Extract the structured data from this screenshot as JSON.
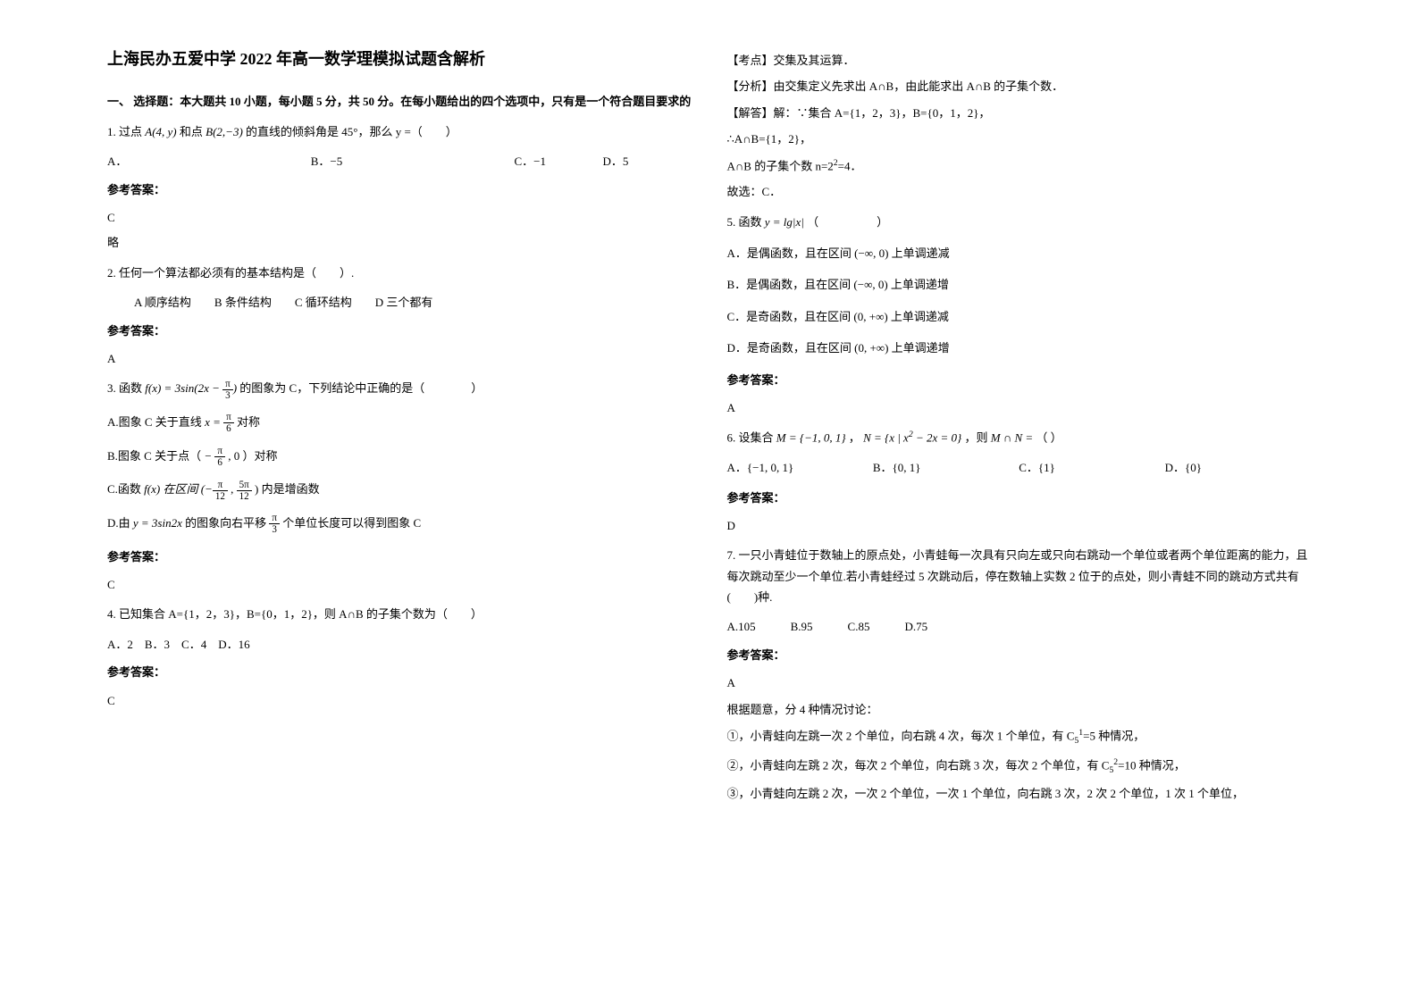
{
  "title": "上海民办五爱中学 2022 年高一数学理模拟试题含解析",
  "section1_header": "一、 选择题：本大题共 10 小题，每小题 5 分，共 50 分。在每小题给出的四个选项中，只有是一个符合题目要求的",
  "q1": {
    "stem_prefix": "1. 过点",
    "point_a": "A(4, y)",
    "stem_mid": " 和点 ",
    "point_b": "B(2,−3)",
    "stem_suffix": " 的直线的倾斜角是 45°，那么 y =（　　）",
    "opt_a": "A．",
    "opt_b": "B．−5",
    "opt_c": "C．−1",
    "opt_d": "D．5",
    "answer_label": "参考答案：",
    "answer": "C",
    "note": "略"
  },
  "q2": {
    "stem": "2. 任何一个算法都必须有的基本结构是（　　）.",
    "opts": "A 顺序结构　　B 条件结构　　C 循环结构　　D 三个都有",
    "answer_label": "参考答案：",
    "answer": "A"
  },
  "q3": {
    "stem_prefix": "3. 函数 ",
    "func": "f(x) = 3sin(2x − ",
    "frac_num": "π",
    "frac_den": "3",
    "stem_suffix": " 的图象为 C，下列结论中正确的是（　　　　）",
    "opt_a_prefix": "A.图象 C 关于直线 ",
    "opt_a_eq": "x = ",
    "opt_a_num": "π",
    "opt_a_den": "6",
    "opt_a_suffix": " 对称",
    "opt_b_prefix": "B.图象 C 关于点（",
    "opt_b_num": "π",
    "opt_b_den": "6",
    "opt_b_mid": "− ",
    "opt_b_suffix": " , 0 ）对称",
    "opt_c_prefix": "C.函数 ",
    "opt_c_func": "f(x) 在区间 (−",
    "opt_c_n1": "π",
    "opt_c_d1": "12",
    "opt_c_mid": " , ",
    "opt_c_n2": "5π",
    "opt_c_d2": "12",
    "opt_c_suffix": ") 内是增函数",
    "opt_d_prefix": "D.由 ",
    "opt_d_func": "y = 3sin2x",
    "opt_d_mid": " 的图象向右平移 ",
    "opt_d_num": "π",
    "opt_d_den": "3",
    "opt_d_suffix": " 个单位长度可以得到图象 C",
    "answer_label": "参考答案：",
    "answer": "C"
  },
  "q4": {
    "stem": "4. 已知集合 A={1，2，3}，B={0，1，2}，则 A∩B 的子集个数为（　　）",
    "opts": "A．2　B．3　C．4　D．16",
    "answer_label": "参考答案：",
    "answer": "C"
  },
  "q4_analysis": {
    "kaodian": "【考点】交集及其运算．",
    "fenxi": "【分析】由交集定义先求出 A∩B，由此能求出 A∩B 的子集个数．",
    "jieda_label": "【解答】解：∵集合 A={1，2，3}，B={0，1，2}，",
    "line1": "∴A∩B={1，2}，",
    "line2_prefix": "A∩B 的子集个数 n=2",
    "line2_exp": "2",
    "line2_suffix": "=4．",
    "line3": "故选：C．"
  },
  "q5": {
    "stem_prefix": "5. 函数 ",
    "func": "y = lg|x|",
    "stem_suffix": "（　　　　　）",
    "opt_a": "A．是偶函数，且在区间 (−∞, 0) 上单调递减",
    "opt_b": "B．是偶函数，且在区间 (−∞, 0) 上单调递增",
    "opt_c": "C．是奇函数，且在区间 (0, +∞) 上单调递减",
    "opt_d": "D．是奇函数，且在区间 (0, +∞) 上单调递增",
    "answer_label": "参考答案：",
    "answer": "A"
  },
  "q6": {
    "stem_prefix": "6. 设集合 ",
    "set_m": "M = {−1, 0, 1}",
    "mid1": "，",
    "set_n_prefix": "N = {x | x",
    "set_n_exp": "2",
    "set_n_suffix": " − 2x = 0}",
    "mid2": "，则 ",
    "expr": "M ∩ N = ",
    "stem_suffix": "（ ）",
    "opt_a": "A．{−1, 0, 1}",
    "opt_b": "B．{0, 1}",
    "opt_c": "C．{1}",
    "opt_d": "D．{0}",
    "answer_label": "参考答案：",
    "answer": "D"
  },
  "q7": {
    "stem": "7. 一只小青蛙位于数轴上的原点处，小青蛙每一次具有只向左或只向右跳动一个单位或者两个单位距离的能力，且每次跳动至少一个单位.若小青蛙经过 5 次跳动后，停在数轴上实数 2 位于的点处，则小青蛙不同的跳动方式共有(　　)种.",
    "opts": "A.105　　　B.95　　　C.85　　　D.75",
    "answer_label": "参考答案：",
    "answer": "A",
    "explain0": "根据题意，分 4 种情况讨论：",
    "explain1_prefix": "①，小青蛙向左跳一次 2 个单位，向右跳 4 次，每次 1 个单位，有 C",
    "explain1_sub": "5",
    "explain1_sup": "1",
    "explain1_suffix": "=5 种情况，",
    "explain2_prefix": "②，小青蛙向左跳 2 次，每次 2 个单位，向右跳 3 次，每次 2 个单位，有 C",
    "explain2_sub": "5",
    "explain2_sup": "2",
    "explain2_suffix": "=10 种情况，",
    "explain3": "③，小青蛙向左跳 2 次，一次 2 个单位，一次 1 个单位，向右跳 3 次，2 次 2 个单位，1 次 1 个单位，"
  }
}
